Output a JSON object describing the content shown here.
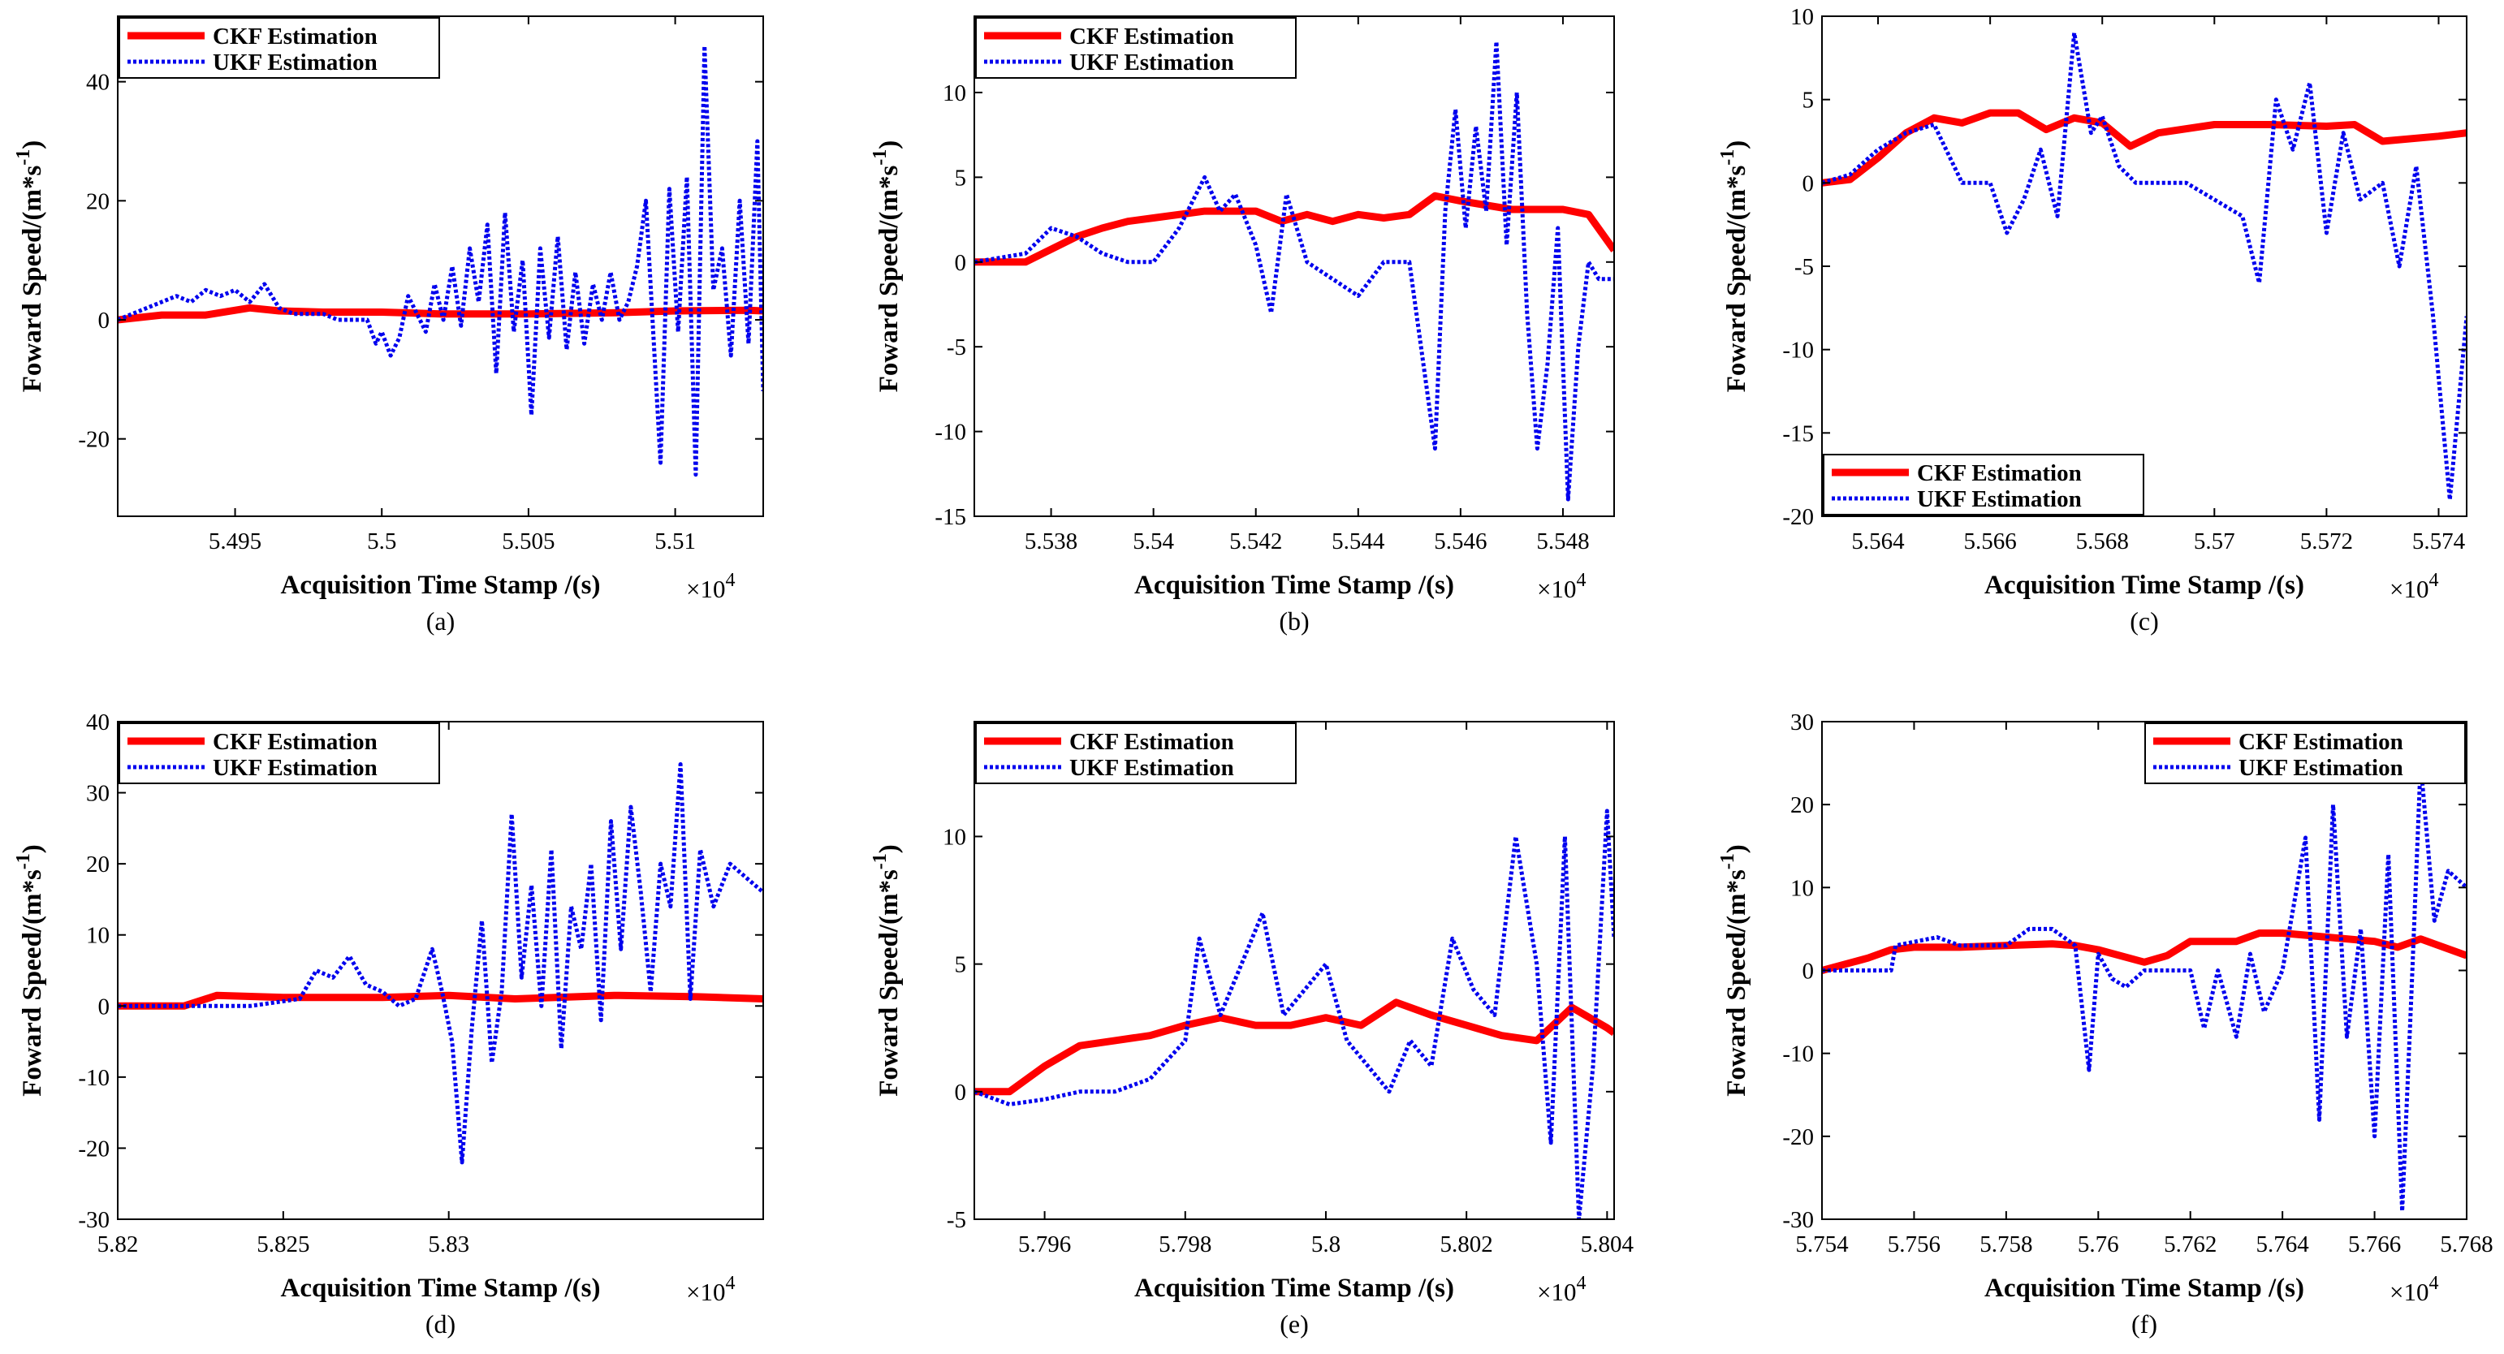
{
  "figure": {
    "colors": {
      "ckf": "#ff0000",
      "ukf": "#0000ee",
      "axes": "#000000"
    }
  },
  "chart_data": [
    {
      "type": "line",
      "caption": "(a)",
      "xlabel": "Acquisition Time Stamp /(s)",
      "ylabel": "Foward Speed/(m*s",
      "ylabel_sup": "-1",
      "ylabel_close": ")",
      "x_multiplier": "×10",
      "x_multiplier_exp": "4",
      "xlim": [
        5.491,
        5.513
      ],
      "ylim": [
        -33,
        51
      ],
      "xticks": [
        5.495,
        5.5,
        5.505,
        5.51
      ],
      "xtick_labels": [
        "5.495",
        "5.5",
        "5.505",
        "5.51"
      ],
      "yticks": [
        -20,
        0,
        20,
        40
      ],
      "ytick_labels": [
        "-20",
        "0",
        "20",
        "40"
      ],
      "legend_position": "top-left",
      "series": [
        {
          "name": "CKF Estimation",
          "x": [
            5.491,
            5.4925,
            5.494,
            5.4955,
            5.4965,
            5.498,
            5.5,
            5.502,
            5.505,
            5.508,
            5.51,
            5.5125,
            5.513
          ],
          "y": [
            0,
            0.8,
            0.8,
            2.0,
            1.5,
            1.3,
            1.3,
            1.0,
            1.0,
            1.2,
            1.5,
            1.6,
            1.5
          ]
        },
        {
          "name": "UKF Estimation",
          "x": [
            5.491,
            5.492,
            5.493,
            5.4935,
            5.494,
            5.4945,
            5.495,
            5.4955,
            5.496,
            5.4965,
            5.497,
            5.4975,
            5.498,
            5.4985,
            5.499,
            5.4995,
            5.4998,
            5.5,
            5.5003,
            5.5006,
            5.5009,
            5.5012,
            5.5015,
            5.5018,
            5.5021,
            5.5024,
            5.5027,
            5.503,
            5.5033,
            5.5036,
            5.5039,
            5.5042,
            5.5045,
            5.5048,
            5.5051,
            5.5054,
            5.5057,
            5.506,
            5.5063,
            5.5066,
            5.5069,
            5.5072,
            5.5075,
            5.5078,
            5.5081,
            5.5084,
            5.5087,
            5.509,
            5.5095,
            5.5098,
            5.5101,
            5.5104,
            5.5107,
            5.511,
            5.5113,
            5.5116,
            5.5119,
            5.5122,
            5.5125,
            5.5128,
            5.513
          ],
          "y": [
            0,
            2,
            4,
            3,
            5,
            4,
            5,
            3,
            6,
            2,
            1,
            1,
            1,
            0,
            0,
            0,
            -4,
            -2,
            -6,
            -3,
            4,
            1,
            -2,
            6,
            0,
            9,
            -1,
            12,
            3,
            16,
            -9,
            18,
            -2,
            10,
            -16,
            12,
            -3,
            14,
            -5,
            8,
            -4,
            6,
            0,
            8,
            0,
            3,
            9,
            20,
            -24,
            22,
            -2,
            24,
            -26,
            46,
            5,
            12,
            -6,
            20,
            -4,
            30,
            -12
          ]
        }
      ]
    },
    {
      "type": "line",
      "caption": "(b)",
      "xlabel": "Acquisition Time Stamp /(s)",
      "ylabel": "Foward Speed/(m*s",
      "ylabel_sup": "-1",
      "ylabel_close": ")",
      "x_multiplier": "×10",
      "x_multiplier_exp": "4",
      "xlim": [
        5.5365,
        5.549
      ],
      "ylim": [
        -15,
        14.5
      ],
      "xticks": [
        5.538,
        5.54,
        5.542,
        5.544,
        5.546,
        5.548
      ],
      "xtick_labels": [
        "5.538",
        "5.54",
        "5.542",
        "5.544",
        "5.546",
        "5.548"
      ],
      "yticks": [
        -15,
        -10,
        -5,
        0,
        5,
        10
      ],
      "ytick_labels": [
        "-15",
        "-10",
        "-5",
        "0",
        "5",
        "10"
      ],
      "legend_position": "top-left",
      "series": [
        {
          "name": "CKF Estimation",
          "x": [
            5.5365,
            5.5375,
            5.5385,
            5.539,
            5.5395,
            5.54,
            5.541,
            5.542,
            5.5425,
            5.543,
            5.5435,
            5.544,
            5.5445,
            5.545,
            5.5455,
            5.546,
            5.547,
            5.548,
            5.5485,
            5.549
          ],
          "y": [
            0,
            0,
            1.5,
            2.0,
            2.4,
            2.6,
            3.0,
            3.0,
            2.4,
            2.8,
            2.4,
            2.8,
            2.6,
            2.8,
            3.9,
            3.6,
            3.1,
            3.1,
            2.8,
            0.7
          ]
        },
        {
          "name": "UKF Estimation",
          "x": [
            5.5365,
            5.5375,
            5.538,
            5.5385,
            5.539,
            5.5395,
            5.54,
            5.5405,
            5.541,
            5.5413,
            5.5416,
            5.542,
            5.5423,
            5.5426,
            5.543,
            5.5435,
            5.544,
            5.5445,
            5.545,
            5.5455,
            5.5457,
            5.5459,
            5.5461,
            5.5463,
            5.5465,
            5.5467,
            5.5469,
            5.5471,
            5.5473,
            5.5475,
            5.5477,
            5.5479,
            5.5481,
            5.5483,
            5.5485,
            5.5487,
            5.549
          ],
          "y": [
            0,
            0.5,
            2,
            1.5,
            0.5,
            0,
            0,
            2,
            5,
            3,
            4,
            1,
            -3,
            4,
            0,
            -1,
            -2,
            0,
            0,
            -11,
            3,
            9,
            2,
            8,
            3,
            13,
            1,
            10,
            -3,
            -11,
            -6,
            2,
            -14,
            -5,
            0,
            -1,
            -1
          ]
        }
      ]
    },
    {
      "type": "line",
      "caption": "(c)",
      "xlabel": "Acquisition Time Stamp /(s)",
      "ylabel": "Foward Speed/(m*s",
      "ylabel_sup": "-1",
      "ylabel_close": ")",
      "x_multiplier": "×10",
      "x_multiplier_exp": "4",
      "xlim": [
        5.563,
        5.5745
      ],
      "ylim": [
        -20,
        10
      ],
      "xticks": [
        5.564,
        5.566,
        5.568,
        5.57,
        5.572,
        5.574
      ],
      "xtick_labels": [
        "5.564",
        "5.566",
        "5.568",
        "5.57",
        "5.572",
        "5.574"
      ],
      "yticks": [
        -20,
        -15,
        -10,
        -5,
        0,
        5,
        10
      ],
      "ytick_labels": [
        "-20",
        "-15",
        "-10",
        "-5",
        "0",
        "5",
        "10"
      ],
      "legend_position": "bottom-left",
      "series": [
        {
          "name": "CKF Estimation",
          "x": [
            5.563,
            5.5635,
            5.564,
            5.5645,
            5.565,
            5.5655,
            5.566,
            5.5665,
            5.567,
            5.5675,
            5.568,
            5.5685,
            5.569,
            5.57,
            5.571,
            5.572,
            5.5725,
            5.573,
            5.574,
            5.5745
          ],
          "y": [
            0,
            0.2,
            1.5,
            3.0,
            3.9,
            3.6,
            4.2,
            4.2,
            3.2,
            3.9,
            3.6,
            2.2,
            3.0,
            3.5,
            3.5,
            3.4,
            3.5,
            2.5,
            2.8,
            3.0
          ]
        },
        {
          "name": "UKF Estimation",
          "x": [
            5.563,
            5.5635,
            5.564,
            5.5645,
            5.565,
            5.5655,
            5.566,
            5.5663,
            5.5666,
            5.5669,
            5.5672,
            5.5675,
            5.5678,
            5.568,
            5.5683,
            5.5686,
            5.569,
            5.5695,
            5.57,
            5.5705,
            5.5708,
            5.5711,
            5.5714,
            5.5717,
            5.572,
            5.5723,
            5.5726,
            5.573,
            5.5733,
            5.5736,
            5.5739,
            5.5742,
            5.5745
          ],
          "y": [
            0,
            0.5,
            2,
            3,
            3.5,
            0,
            0,
            -3,
            -1,
            2,
            -2,
            9,
            3,
            4,
            1,
            0,
            0,
            0,
            -1,
            -2,
            -6,
            5,
            2,
            6,
            -3,
            3,
            -1,
            0,
            -5,
            1,
            -8,
            -19,
            -8
          ]
        }
      ]
    },
    {
      "type": "line",
      "caption": "(d)",
      "xlabel": "Acquisition Time Stamp /(s)",
      "ylabel": "Foward Speed/(m*s",
      "ylabel_sup": "-1",
      "ylabel_close": ")",
      "x_multiplier": "×10",
      "x_multiplier_exp": "4",
      "xlim": [
        5.82,
        5.8395
      ],
      "ylim": [
        -30,
        40
      ],
      "xticks": [
        5.82,
        5.825,
        5.83
      ],
      "xtick_labels": [
        "5.82",
        "5.825",
        "5.83"
      ],
      "yticks": [
        -30,
        -20,
        -10,
        0,
        10,
        20,
        30,
        40
      ],
      "ytick_labels": [
        "-30",
        "-20",
        "-10",
        "0",
        "10",
        "20",
        "30",
        "40"
      ],
      "legend_position": "top-left",
      "series": [
        {
          "name": "CKF Estimation",
          "x": [
            5.82,
            5.822,
            5.823,
            5.825,
            5.828,
            5.83,
            5.832,
            5.835,
            5.8375,
            5.8395
          ],
          "y": [
            0,
            0,
            1.5,
            1.2,
            1.2,
            1.5,
            1.0,
            1.5,
            1.3,
            1.0
          ]
        },
        {
          "name": "UKF Estimation",
          "x": [
            5.82,
            5.822,
            5.824,
            5.8255,
            5.826,
            5.8265,
            5.827,
            5.8275,
            5.828,
            5.8285,
            5.829,
            5.8295,
            5.8298,
            5.8301,
            5.8304,
            5.8307,
            5.831,
            5.8313,
            5.8316,
            5.8319,
            5.8322,
            5.8325,
            5.8328,
            5.8331,
            5.8334,
            5.8337,
            5.834,
            5.8343,
            5.8346,
            5.8349,
            5.8352,
            5.8355,
            5.8358,
            5.8361,
            5.8364,
            5.8367,
            5.837,
            5.8373,
            5.8376,
            5.838,
            5.8385,
            5.839,
            5.8395
          ],
          "y": [
            0,
            0,
            0,
            1,
            5,
            4,
            7,
            3,
            2,
            0,
            1,
            8,
            2,
            -5,
            -22,
            -3,
            12,
            -8,
            2,
            27,
            4,
            17,
            0,
            22,
            -6,
            14,
            8,
            20,
            -2,
            26,
            8,
            28,
            16,
            2,
            20,
            14,
            34,
            1,
            22,
            14,
            20,
            18,
            16
          ]
        }
      ]
    },
    {
      "type": "line",
      "caption": "(e)",
      "xlabel": "Acquisition Time Stamp /(s)",
      "ylabel": "Foward Speed/(m*s",
      "ylabel_sup": "-1",
      "ylabel_close": ")",
      "x_multiplier": "×10",
      "x_multiplier_exp": "4",
      "xlim": [
        5.795,
        5.8041
      ],
      "ylim": [
        -5,
        14.5
      ],
      "xticks": [
        5.796,
        5.798,
        5.8,
        5.802,
        5.804
      ],
      "xtick_labels": [
        "5.796",
        "5.798",
        "5.8",
        "5.802",
        "5.804"
      ],
      "yticks": [
        -5,
        0,
        5,
        10
      ],
      "ytick_labels": [
        "-5",
        "0",
        "5",
        "10"
      ],
      "legend_position": "top-left",
      "series": [
        {
          "name": "CKF Estimation",
          "x": [
            5.795,
            5.7955,
            5.796,
            5.7965,
            5.797,
            5.7975,
            5.798,
            5.7985,
            5.799,
            5.7995,
            5.8,
            5.8005,
            5.801,
            5.8015,
            5.802,
            5.8025,
            5.803,
            5.8035,
            5.804,
            5.8041
          ],
          "y": [
            0,
            0,
            1.0,
            1.8,
            2.0,
            2.2,
            2.6,
            2.9,
            2.6,
            2.6,
            2.9,
            2.6,
            3.5,
            3.0,
            2.6,
            2.2,
            2.0,
            3.3,
            2.5,
            2.3
          ]
        },
        {
          "name": "UKF Estimation",
          "x": [
            5.795,
            5.7955,
            5.796,
            5.7965,
            5.797,
            5.7975,
            5.798,
            5.7982,
            5.7985,
            5.7988,
            5.7991,
            5.7994,
            5.7997,
            5.8,
            5.8003,
            5.8006,
            5.8009,
            5.8012,
            5.8015,
            5.8018,
            5.8021,
            5.8024,
            5.8027,
            5.803,
            5.8032,
            5.8034,
            5.8036,
            5.8038,
            5.804,
            5.8041
          ],
          "y": [
            0,
            -0.5,
            -0.3,
            0,
            0,
            0.5,
            2,
            6,
            3,
            5,
            7,
            3,
            4,
            5,
            2,
            1,
            0,
            2,
            1,
            6,
            4,
            3,
            10,
            5,
            -2,
            10,
            -5,
            1,
            11,
            6
          ]
        }
      ]
    },
    {
      "type": "line",
      "caption": "(f)",
      "xlabel": "Acquisition Time Stamp /(s)",
      "ylabel": "Foward Speed/(m*s",
      "ylabel_sup": "-1",
      "ylabel_close": ")",
      "x_multiplier": "×10",
      "x_multiplier_exp": "4",
      "xlim": [
        5.754,
        5.768
      ],
      "ylim": [
        -30,
        30
      ],
      "xticks": [
        5.754,
        5.756,
        5.758,
        5.76,
        5.762,
        5.764,
        5.766,
        5.768
      ],
      "xtick_labels": [
        "5.754",
        "5.756",
        "5.758",
        "5.76",
        "5.762",
        "5.764",
        "5.766",
        "5.768"
      ],
      "yticks": [
        -30,
        -20,
        -10,
        0,
        10,
        20,
        30
      ],
      "ytick_labels": [
        "-30",
        "-20",
        "-10",
        "0",
        "10",
        "20",
        "30"
      ],
      "legend_position": "top-right",
      "series": [
        {
          "name": "CKF Estimation",
          "x": [
            5.754,
            5.755,
            5.7555,
            5.756,
            5.757,
            5.758,
            5.759,
            5.7595,
            5.76,
            5.761,
            5.7615,
            5.762,
            5.763,
            5.7635,
            5.764,
            5.765,
            5.766,
            5.7665,
            5.767,
            5.768
          ],
          "y": [
            0,
            1.5,
            2.5,
            2.8,
            2.8,
            3.0,
            3.2,
            3.0,
            2.5,
            1.0,
            1.8,
            3.5,
            3.5,
            4.5,
            4.5,
            4.0,
            3.5,
            2.8,
            3.8,
            1.8
          ]
        },
        {
          "name": "UKF Estimation",
          "x": [
            5.754,
            5.755,
            5.7555,
            5.7556,
            5.7565,
            5.757,
            5.758,
            5.7585,
            5.759,
            5.7595,
            5.7598,
            5.76,
            5.7603,
            5.7606,
            5.761,
            5.762,
            5.7623,
            5.7626,
            5.763,
            5.7633,
            5.7636,
            5.764,
            5.7645,
            5.7648,
            5.7651,
            5.7654,
            5.7657,
            5.766,
            5.7663,
            5.7666,
            5.7668,
            5.767,
            5.7673,
            5.7676,
            5.768
          ],
          "y": [
            0,
            0,
            0,
            3,
            4,
            3,
            3,
            5,
            5,
            3,
            -12,
            2,
            -1,
            -2,
            0,
            0,
            -7,
            0,
            -8,
            2,
            -5,
            0,
            16,
            -18,
            20,
            -8,
            5,
            -20,
            14,
            -29,
            -3,
            25,
            6,
            12,
            10
          ]
        }
      ]
    }
  ]
}
